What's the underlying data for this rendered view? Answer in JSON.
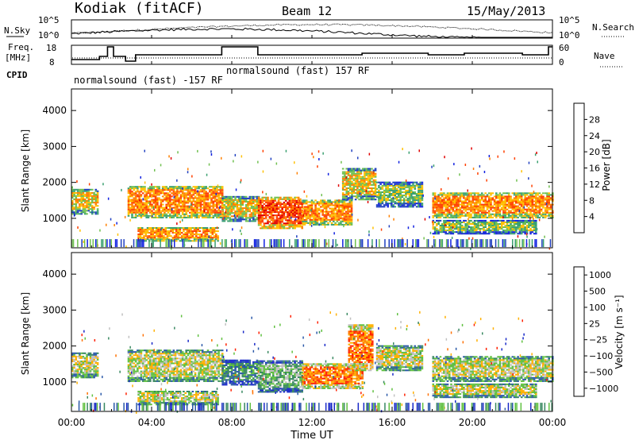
{
  "header": {
    "station": "Kodiak (fitACF)",
    "beam": "Beam 12",
    "date": "15/May/2013"
  },
  "nsky_panel": {
    "left_label": "N.Sky",
    "right_label": "N.Search",
    "left_ticks": [
      "10^5",
      "10^0"
    ],
    "right_ticks": [
      "10^5",
      "10^0"
    ]
  },
  "freq_panel": {
    "left_label_1": "Freq.",
    "left_label_2": "[MHz]",
    "right_label": "Nave",
    "left_ticks": [
      "18",
      "8"
    ],
    "right_ticks": [
      "60",
      "0"
    ],
    "freq_steps": [
      [
        0,
        10
      ],
      [
        1.4,
        12
      ],
      [
        1.8,
        18
      ],
      [
        2.1,
        12
      ],
      [
        2.7,
        9
      ],
      [
        3.2,
        13
      ],
      [
        3.7,
        13
      ],
      [
        7.5,
        18
      ],
      [
        9.3,
        13
      ],
      [
        14.5,
        14
      ],
      [
        17.8,
        13
      ],
      [
        19.6,
        14
      ],
      [
        22.5,
        13
      ],
      [
        23.8,
        18
      ],
      [
        24,
        18
      ]
    ]
  },
  "cpid": {
    "label": "CPID",
    "mode1": "normalsound (fast) -157 RF",
    "mode2": "normalsound (fast) 157 RF"
  },
  "time_axis": {
    "title": "Time UT",
    "ticks": [
      "00:00",
      "04:00",
      "08:00",
      "12:00",
      "16:00",
      "20:00",
      "00:00"
    ],
    "range_hours": [
      0,
      24
    ]
  },
  "chart_data": [
    {
      "type": "heatmap",
      "name": "power",
      "ylabel": "Slant Range [km]",
      "yticks": [
        "1000",
        "2000",
        "3000",
        "4000"
      ],
      "ylim": [
        180,
        4600
      ],
      "colorbar_title": "Power [dB]",
      "colorbar_ticks": [
        "4",
        "8",
        "12",
        "16",
        "20",
        "24",
        "28"
      ],
      "color_scale": [
        "#1020e0",
        "#2040c0",
        "#3aa070",
        "#70c050",
        "#ffc000",
        "#ff8000",
        "#ff4000",
        "#e00000"
      ],
      "bands": [
        {
          "t0": 0.0,
          "t1": 1.3,
          "r0": 1100,
          "r1": 1800,
          "level": 4
        },
        {
          "t0": 2.8,
          "t1": 7.5,
          "r0": 1000,
          "r1": 1900,
          "level": 5
        },
        {
          "t0": 3.3,
          "t1": 7.3,
          "r0": 350,
          "r1": 750,
          "level": 5
        },
        {
          "t0": 7.5,
          "t1": 9.3,
          "r0": 900,
          "r1": 1600,
          "level": 4
        },
        {
          "t0": 9.3,
          "t1": 11.5,
          "r0": 700,
          "r1": 1600,
          "level": 6
        },
        {
          "t0": 11.5,
          "t1": 14.0,
          "r0": 800,
          "r1": 1500,
          "level": 5
        },
        {
          "t0": 13.5,
          "t1": 15.2,
          "r0": 1500,
          "r1": 2400,
          "level": 4
        },
        {
          "t0": 15.2,
          "t1": 17.5,
          "r0": 1300,
          "r1": 2000,
          "level": 3
        },
        {
          "t0": 18.0,
          "t1": 23.5,
          "r0": 1000,
          "r1": 1700,
          "level": 5
        },
        {
          "t0": 18.0,
          "t1": 23.2,
          "r0": 550,
          "r1": 950,
          "level": 3
        },
        {
          "t0": 23.6,
          "t1": 24.0,
          "r0": 1000,
          "r1": 1700,
          "level": 5
        }
      ]
    },
    {
      "type": "heatmap",
      "name": "velocity",
      "ylabel": "Slant Range [km]",
      "yticks": [
        "1000",
        "2000",
        "3000",
        "4000"
      ],
      "ylim": [
        180,
        4600
      ],
      "colorbar_title": "Velocity [m s⁻¹]",
      "colorbar_ticks": [
        "1000",
        "500",
        "100",
        "25",
        "−25",
        "−100",
        "−500",
        "−1000"
      ],
      "color_scale": [
        "#1828c8",
        "#2a58a8",
        "#388860",
        "#60c040",
        "#c0c0c0",
        "#ffb000",
        "#ff7000",
        "#ff2000"
      ],
      "bands": [
        {
          "t0": 0.0,
          "t1": 1.3,
          "r0": 1100,
          "r1": 1800,
          "level": 4
        },
        {
          "t0": 2.8,
          "t1": 7.5,
          "r0": 1000,
          "r1": 1900,
          "level": 4
        },
        {
          "t0": 3.3,
          "t1": 7.3,
          "r0": 350,
          "r1": 750,
          "level": 4
        },
        {
          "t0": 7.5,
          "t1": 9.3,
          "r0": 900,
          "r1": 1600,
          "level": 2
        },
        {
          "t0": 9.3,
          "t1": 11.5,
          "r0": 700,
          "r1": 1600,
          "level": 3
        },
        {
          "t0": 11.5,
          "t1": 14.5,
          "r0": 800,
          "r1": 1500,
          "level": 6
        },
        {
          "t0": 13.8,
          "t1": 15.0,
          "r0": 1300,
          "r1": 2600,
          "level": 6
        },
        {
          "t0": 15.2,
          "t1": 17.5,
          "r0": 1300,
          "r1": 2000,
          "level": 4
        },
        {
          "t0": 18.0,
          "t1": 23.5,
          "r0": 1000,
          "r1": 1700,
          "level": 4
        },
        {
          "t0": 18.0,
          "t1": 23.2,
          "r0": 550,
          "r1": 950,
          "level": 4
        },
        {
          "t0": 23.6,
          "t1": 24.0,
          "r0": 1000,
          "r1": 1700,
          "level": 4
        }
      ]
    }
  ]
}
